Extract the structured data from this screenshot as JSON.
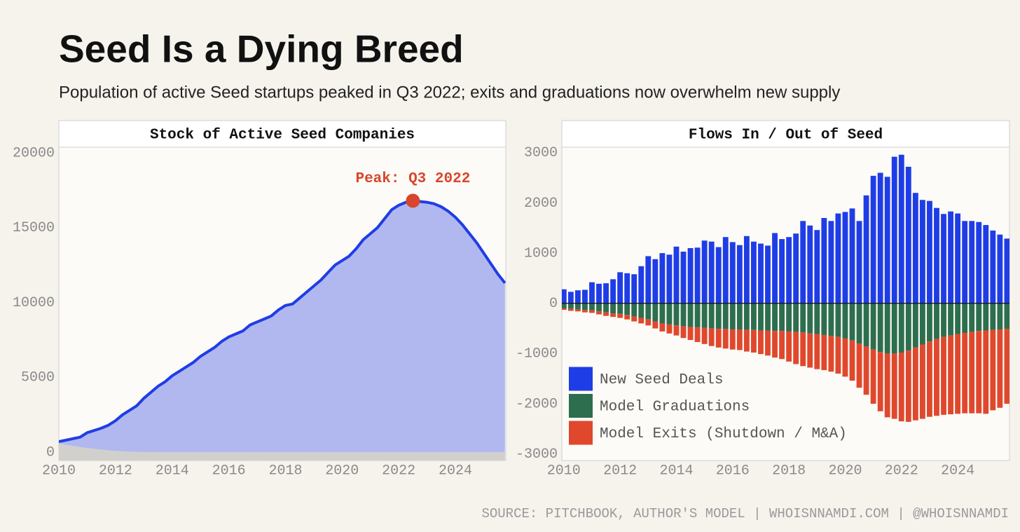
{
  "header": {
    "title": "Seed Is a Dying Breed",
    "subtitle": "Population of active Seed startups peaked in Q3 2022; exits and graduations now overwhelm new supply"
  },
  "chart_data": [
    {
      "type": "area",
      "title": "Stock of Active Seed Companies",
      "x": [
        2010,
        2010.25,
        2010.5,
        2010.75,
        2011,
        2011.25,
        2011.5,
        2011.75,
        2012,
        2012.25,
        2012.5,
        2012.75,
        2013,
        2013.25,
        2013.5,
        2013.75,
        2014,
        2014.25,
        2014.5,
        2014.75,
        2015,
        2015.25,
        2015.5,
        2015.75,
        2016,
        2016.25,
        2016.5,
        2016.75,
        2017,
        2017.25,
        2017.5,
        2017.75,
        2018,
        2018.25,
        2018.5,
        2018.75,
        2019,
        2019.25,
        2019.5,
        2019.75,
        2020,
        2020.25,
        2020.5,
        2020.75,
        2021,
        2021.25,
        2021.5,
        2021.75,
        2022,
        2022.25,
        2022.5,
        2022.75,
        2023,
        2023.25,
        2023.5,
        2023.75,
        2024,
        2024.25,
        2024.5,
        2024.75,
        2025,
        2025.25,
        2025.5,
        2025.75
      ],
      "series": [
        {
          "color": "#1f3de6",
          "fill": "#b0b8ef",
          "values": [
            700,
            800,
            900,
            1000,
            1300,
            1450,
            1600,
            1800,
            2100,
            2500,
            2800,
            3100,
            3600,
            4000,
            4400,
            4700,
            5100,
            5400,
            5700,
            6000,
            6400,
            6700,
            7000,
            7400,
            7700,
            7900,
            8100,
            8500,
            8700,
            8900,
            9100,
            9500,
            9800,
            9900,
            10300,
            10700,
            11100,
            11500,
            12000,
            12500,
            12800,
            13100,
            13600,
            14200,
            14600,
            15000,
            15600,
            16200,
            16500,
            16700,
            16800,
            16750,
            16700,
            16600,
            16400,
            16100,
            15700,
            15200,
            14600,
            14000,
            13300,
            12600,
            11900,
            11300
          ]
        },
        {
          "fill": "#d2d0cd",
          "values": [
            600,
            500,
            420,
            350,
            280,
            220,
            170,
            120,
            90,
            60,
            40,
            25,
            15,
            8,
            4,
            2,
            0,
            0,
            0,
            0,
            0,
            0,
            0,
            0,
            0,
            0,
            0,
            0,
            0,
            0,
            0,
            0,
            0,
            0,
            0,
            0,
            0,
            0,
            0,
            0,
            0,
            0,
            0,
            0,
            0,
            0,
            0,
            0,
            0,
            0,
            0,
            0,
            0,
            0,
            0,
            0,
            0,
            0,
            0,
            0,
            0,
            0,
            0,
            0
          ]
        }
      ],
      "xlim": [
        2010,
        2025.78
      ],
      "ylim": [
        -560,
        20380
      ],
      "xticks": [
        2010,
        2012,
        2014,
        2016,
        2018,
        2020,
        2022,
        2024
      ],
      "yticks": [
        0,
        5000,
        10000,
        15000,
        20000
      ],
      "annotation": {
        "text": "Peak: Q3 2022",
        "color": "#d9452c"
      }
    },
    {
      "type": "bar",
      "title": "Flows In / Out of Seed",
      "x": [
        2010,
        2010.25,
        2010.5,
        2010.75,
        2011,
        2011.25,
        2011.5,
        2011.75,
        2012,
        2012.25,
        2012.5,
        2012.75,
        2013,
        2013.25,
        2013.5,
        2013.75,
        2014,
        2014.25,
        2014.5,
        2014.75,
        2015,
        2015.25,
        2015.5,
        2015.75,
        2016,
        2016.25,
        2016.5,
        2016.75,
        2017,
        2017.25,
        2017.5,
        2017.75,
        2018,
        2018.25,
        2018.5,
        2018.75,
        2019,
        2019.25,
        2019.5,
        2019.75,
        2020,
        2020.25,
        2020.5,
        2020.75,
        2021,
        2021.25,
        2021.5,
        2021.75,
        2022,
        2022.25,
        2022.5,
        2022.75,
        2023,
        2023.25,
        2023.5,
        2023.75,
        2024,
        2024.25,
        2024.5,
        2024.75,
        2025,
        2025.25,
        2025.5,
        2025.75
      ],
      "series": [
        {
          "name": "New Seed Deals",
          "color": "#1f3de6",
          "values": [
            280,
            230,
            260,
            270,
            420,
            390,
            400,
            480,
            620,
            600,
            580,
            740,
            940,
            880,
            1000,
            970,
            1130,
            1030,
            1100,
            1110,
            1250,
            1230,
            1120,
            1320,
            1220,
            1160,
            1340,
            1230,
            1190,
            1150,
            1400,
            1280,
            1320,
            1390,
            1640,
            1550,
            1460,
            1700,
            1640,
            1790,
            1820,
            1890,
            1640,
            2150,
            2540,
            2600,
            2520,
            2920,
            2960,
            2720,
            2200,
            2060,
            2040,
            1900,
            1780,
            1830,
            1790,
            1640,
            1640,
            1620,
            1560,
            1450,
            1370,
            1290
          ]
        },
        {
          "name": "Model Graduations",
          "color": "#2d6e4e",
          "values": [
            -100,
            -110,
            -120,
            -130,
            -140,
            -160,
            -180,
            -200,
            -210,
            -230,
            -260,
            -290,
            -320,
            -360,
            -400,
            -420,
            -440,
            -460,
            -470,
            -480,
            -490,
            -500,
            -510,
            -510,
            -520,
            -520,
            -530,
            -530,
            -540,
            -540,
            -550,
            -550,
            -560,
            -570,
            -580,
            -600,
            -610,
            -630,
            -650,
            -670,
            -700,
            -740,
            -800,
            -860,
            -920,
            -970,
            -1000,
            -1000,
            -980,
            -940,
            -880,
            -820,
            -760,
            -710,
            -670,
            -640,
            -610,
            -590,
            -570,
            -550,
            -540,
            -530,
            -520,
            -510
          ]
        },
        {
          "name": "Model Exits (Shutdown / M&A)",
          "color": "#e0482d",
          "values": [
            -30,
            -40,
            -40,
            -50,
            -50,
            -60,
            -70,
            -70,
            -80,
            -90,
            -100,
            -110,
            -120,
            -140,
            -160,
            -180,
            -200,
            -230,
            -260,
            -290,
            -320,
            -350,
            -370,
            -390,
            -400,
            -410,
            -430,
            -450,
            -470,
            -500,
            -530,
            -560,
            -600,
            -640,
            -670,
            -680,
            -700,
            -700,
            -710,
            -730,
            -760,
            -800,
            -880,
            -960,
            -1080,
            -1180,
            -1270,
            -1300,
            -1370,
            -1420,
            -1450,
            -1480,
            -1500,
            -1530,
            -1550,
            -1570,
            -1590,
            -1600,
            -1620,
            -1640,
            -1660,
            -1600,
            -1560,
            -1490
          ]
        }
      ],
      "xlim": [
        2009.93,
        2025.84
      ],
      "ylim": [
        -3130,
        3110
      ],
      "xticks": [
        2010,
        2012,
        2014,
        2016,
        2018,
        2020,
        2022,
        2024
      ],
      "yticks": [
        -3000,
        -2000,
        -1000,
        0,
        1000,
        2000,
        3000
      ],
      "zero_line": true,
      "legend": "lower left"
    }
  ],
  "footer": {
    "source": "SOURCE: PITCHBOOK, AUTHOR'S MODEL | WHOISNNAMDI.COM | @WHOISNNAMDI"
  }
}
